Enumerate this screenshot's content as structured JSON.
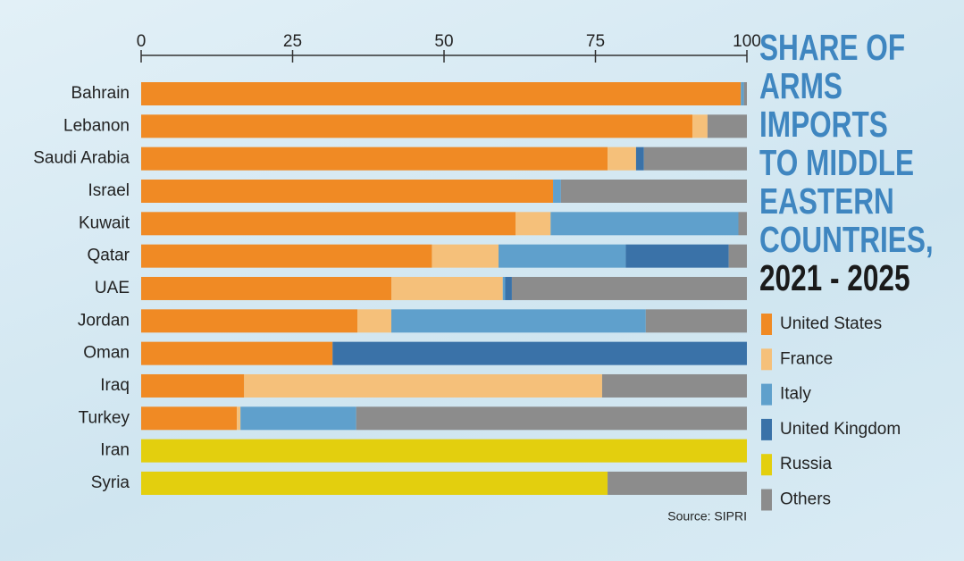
{
  "chart_data": {
    "type": "stacked-bar-horizontal",
    "title": "SHARE OF ARMS IMPORTS TO MIDDLE EASTERN COUNTRIES,",
    "subtitle": "2021 - 2025",
    "source": "Source: SIPRI",
    "categories": [
      "Bahrain",
      "Lebanon",
      "Saudi Arabia",
      "Israel",
      "Kuwait",
      "Qatar",
      "UAE",
      "Jordan",
      "Oman",
      "Iraq",
      "Turkey",
      "Iran",
      "Syria"
    ],
    "series": [
      {
        "name": "United States",
        "color": "#f08a24",
        "values": [
          99,
          91,
          77,
          68,
          61.8,
          48,
          41.3,
          35.7,
          31.6,
          17,
          15.8,
          0,
          0
        ]
      },
      {
        "name": "France",
        "color": "#f5c07a",
        "values": [
          0,
          2.5,
          4.7,
          0,
          5.8,
          11,
          18.4,
          5.6,
          0,
          59.1,
          0.6,
          0,
          0
        ]
      },
      {
        "name": "Italy",
        "color": "#5fa0cc",
        "values": [
          0.5,
          0,
          0,
          1.3,
          31,
          21,
          0.4,
          42,
          0,
          0,
          19.1,
          0,
          0
        ]
      },
      {
        "name": "United Kingdom",
        "color": "#3a72a8",
        "values": [
          0,
          0,
          1.3,
          0,
          0,
          17,
          1.1,
          0,
          68.4,
          0,
          0,
          0,
          0
        ]
      },
      {
        "name": "Russia",
        "color": "#e3cf0e",
        "values": [
          0,
          0,
          0,
          0,
          0,
          0,
          0,
          0,
          0,
          0,
          0,
          100,
          77
        ]
      },
      {
        "name": "Others",
        "color": "#8c8c8c",
        "values": [
          0.5,
          6.5,
          17,
          30.7,
          1.4,
          3,
          38.8,
          16.7,
          0,
          23.9,
          64.5,
          0,
          23
        ]
      }
    ],
    "xlim": [
      0,
      100
    ],
    "xticks": [
      0,
      25,
      50,
      75,
      100
    ]
  }
}
